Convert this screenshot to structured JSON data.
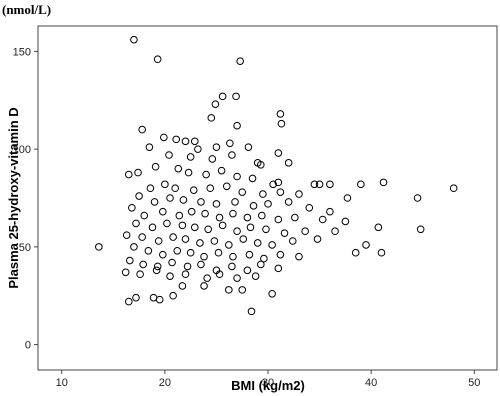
{
  "chart_data": {
    "type": "scatter",
    "unit_label": "(nmol/L)",
    "x_label": "BMI (kg/m2)",
    "y_label": "Plasma 25-hydroxy-vitamin D",
    "xlim": [
      7.7,
      52.2
    ],
    "ylim": [
      -13,
      163
    ],
    "xticks": [
      10,
      20,
      30,
      40,
      50
    ],
    "yticks": [
      0,
      50,
      100,
      150
    ],
    "color": "#000000",
    "x": [
      17,
      19.3,
      27.3,
      25.6,
      26.9,
      24.9,
      24.5,
      31.2,
      31.3,
      17.8,
      27,
      22.9,
      19.9,
      21.1,
      22,
      23.2,
      25,
      26.3,
      28.1,
      18.5,
      20.4,
      22.5,
      24.6,
      26.5,
      29,
      29.3,
      31,
      32,
      17.4,
      19.1,
      21.3,
      22.3,
      24,
      25.5,
      27,
      28.5,
      30.5,
      31,
      34.5,
      35,
      36,
      39,
      41.2,
      16.5,
      18.6,
      20,
      21,
      22.8,
      24.4,
      26,
      27.5,
      29.5,
      31.2,
      33,
      37.7,
      44.5,
      48,
      17.5,
      19,
      20.5,
      21.8,
      23.5,
      25,
      26.8,
      28.6,
      30,
      32,
      34,
      36,
      16.8,
      18,
      19.8,
      21.4,
      22.6,
      23.9,
      25.3,
      26.6,
      28,
      29.4,
      31,
      32.6,
      35.3,
      37.5,
      40.7,
      44.8,
      17.2,
      18.8,
      20.2,
      21.7,
      22.9,
      24.2,
      25.6,
      27,
      28.3,
      29.8,
      31.6,
      33.6,
      36.5,
      16.3,
      17.8,
      19.4,
      20.8,
      22,
      23.4,
      24.8,
      26.2,
      27.6,
      29,
      30.4,
      32.4,
      34.8,
      39.5,
      13.6,
      17,
      18.4,
      19.8,
      21.2,
      22.5,
      23.8,
      25.2,
      26.6,
      28.2,
      29.6,
      31.2,
      33,
      38.5,
      41,
      16.6,
      17.9,
      19.3,
      20.7,
      22.2,
      23.5,
      25,
      26.5,
      28,
      29.3,
      31,
      16.2,
      17.6,
      19.2,
      20.5,
      22,
      24.1,
      25.3,
      27,
      28.8,
      21.7,
      23.8,
      26.2,
      27.5,
      16.5,
      17.2,
      19.5,
      20.8,
      30.4,
      28.4,
      18.9
    ],
    "values": [
      156,
      146,
      145,
      127,
      127,
      123,
      116,
      118,
      113,
      110,
      112,
      104,
      106,
      105,
      104,
      100,
      101,
      103,
      101,
      101,
      97,
      96,
      95,
      97,
      93,
      92,
      98,
      93,
      88,
      91,
      90,
      88,
      87,
      89,
      86,
      85,
      82,
      83,
      82,
      82,
      82,
      82,
      83,
      87,
      80,
      82,
      80,
      79,
      80,
      81,
      78,
      77,
      78,
      77,
      75,
      75,
      80,
      76,
      73,
      75,
      74,
      73,
      72,
      73,
      71,
      72,
      73,
      70,
      68,
      70,
      66,
      68,
      66,
      68,
      67,
      65,
      67,
      65,
      66,
      64,
      65,
      64,
      63,
      60,
      59,
      62,
      60,
      62,
      61,
      60,
      59,
      61,
      58,
      60,
      59,
      57,
      58,
      58,
      56,
      55,
      53,
      55,
      54,
      52,
      53,
      51,
      54,
      52,
      51,
      53,
      54,
      51,
      50,
      50,
      48,
      46,
      48,
      47,
      45,
      47,
      45,
      46,
      44,
      46,
      45,
      47,
      47,
      43,
      41,
      40,
      42,
      40,
      41,
      38,
      40,
      38,
      41,
      39,
      37,
      36,
      38,
      35,
      36,
      34,
      36,
      34,
      35,
      30,
      30,
      28,
      28,
      22,
      24,
      23,
      25,
      26,
      17,
      24
    ]
  }
}
